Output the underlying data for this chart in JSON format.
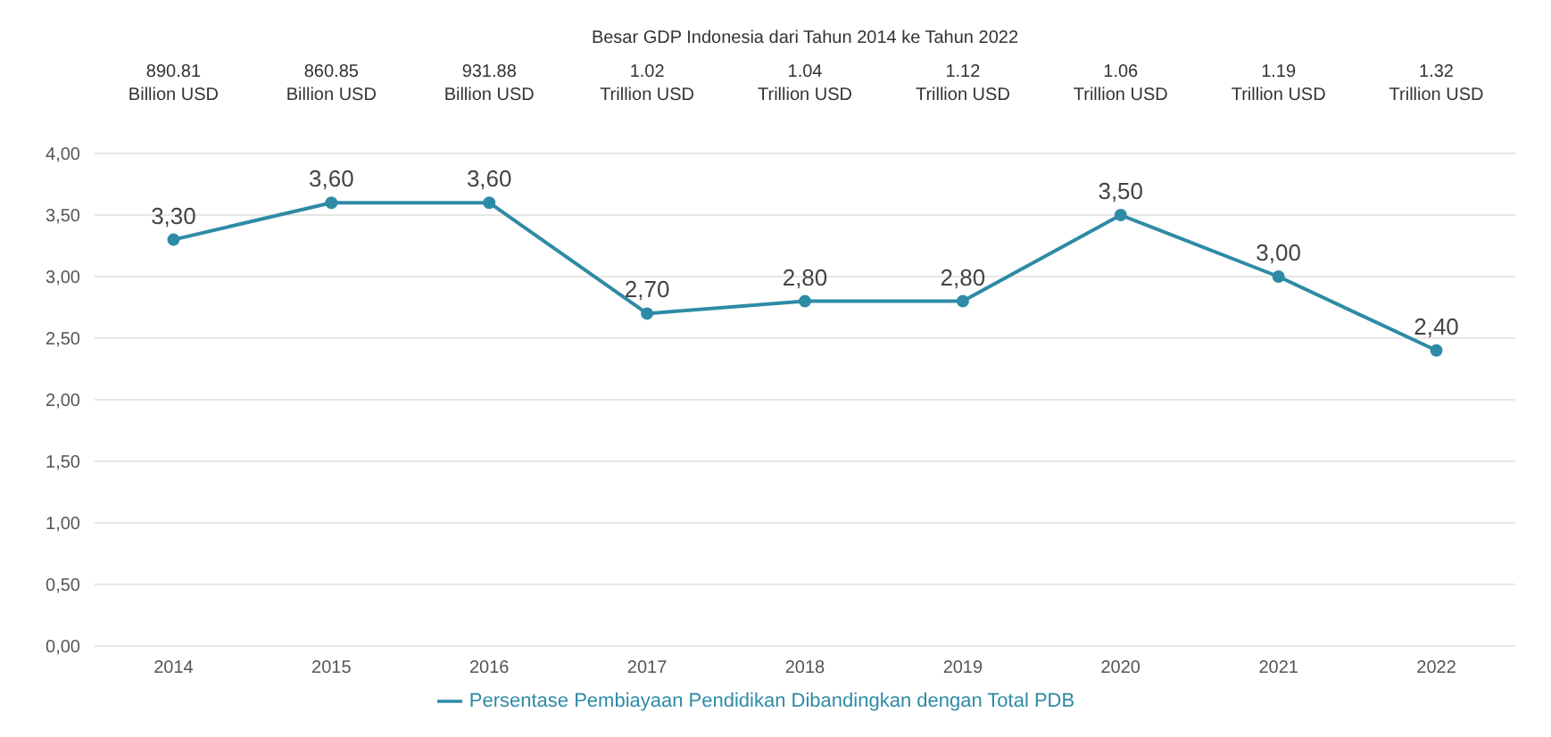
{
  "chart_data": {
    "type": "line",
    "title": "Besar GDP Indonesia dari Tahun 2014 ke Tahun 2022",
    "categories": [
      "2014",
      "2015",
      "2016",
      "2017",
      "2018",
      "2019",
      "2020",
      "2021",
      "2022"
    ],
    "series": [
      {
        "name": "Persentase Pembiayaan Pendidikan Dibandingkan dengan Total PDB",
        "color": "#2e8ba6",
        "values": [
          3.3,
          3.6,
          3.6,
          2.7,
          2.8,
          2.8,
          3.5,
          3.0,
          2.4
        ],
        "value_labels": [
          "3,30",
          "3,60",
          "3,60",
          "2,70",
          "2,80",
          "2,80",
          "3,50",
          "3,00",
          "2,40"
        ]
      }
    ],
    "annotations": [
      "890.81\nBillion USD",
      "860.85\nBillion USD",
      "931.88\nBillion USD",
      "1.02\nTrillion USD",
      "1.04\nTrillion USD",
      "1.12\nTrillion USD",
      "1.06\nTrillion USD",
      "1.19\nTrillion USD",
      "1.32\nTrillion USD"
    ],
    "ylim": [
      0,
      4
    ],
    "yticks": [
      {
        "value": 0,
        "label": "0,00"
      },
      {
        "value": 0.5,
        "label": "0,50"
      },
      {
        "value": 1,
        "label": "1,00"
      },
      {
        "value": 1.5,
        "label": "1,50"
      },
      {
        "value": 2,
        "label": "2,00"
      },
      {
        "value": 2.5,
        "label": "2,50"
      },
      {
        "value": 3,
        "label": "3,00"
      },
      {
        "value": 3.5,
        "label": "3,50"
      },
      {
        "value": 4,
        "label": "4,00"
      }
    ],
    "grid": "y",
    "legend": "bottom",
    "marker": "circle",
    "line_style": "solid"
  }
}
